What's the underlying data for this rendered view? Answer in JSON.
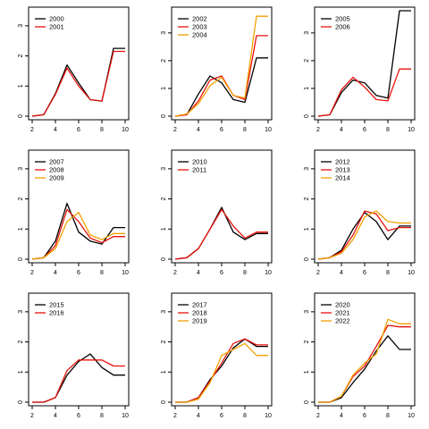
{
  "colors": {
    "black": "#000000",
    "red": "#e8120c",
    "orange": "#f2a100"
  },
  "chart_data": [
    {
      "type": "line",
      "x": [
        2,
        3,
        4,
        5,
        6,
        7,
        8,
        9,
        10
      ],
      "xlim": [
        2,
        10
      ],
      "ylim": [
        0,
        3.5
      ],
      "xticks": [
        "2",
        "4",
        "6",
        "8",
        "10"
      ],
      "yticks": [
        "0",
        "1",
        "2",
        "3"
      ],
      "legend": "top-left",
      "series": [
        {
          "name": "2000",
          "color": "black",
          "values": [
            0,
            0.05,
            0.75,
            1.7,
            1.1,
            0.55,
            0.5,
            2.25,
            2.25
          ]
        },
        {
          "name": "2001",
          "color": "red",
          "values": [
            0,
            0.05,
            0.72,
            1.6,
            1.0,
            0.55,
            0.5,
            2.15,
            2.15
          ]
        }
      ]
    },
    {
      "type": "line",
      "x": [
        2,
        3,
        4,
        5,
        6,
        7,
        8,
        9,
        10
      ],
      "xlim": [
        2,
        10
      ],
      "ylim": [
        0,
        3.8
      ],
      "xticks": [
        "2",
        "4",
        "6",
        "8",
        "10"
      ],
      "yticks": [
        "0",
        "1",
        "2",
        "3"
      ],
      "legend": "top-left",
      "series": [
        {
          "name": "2002",
          "color": "black",
          "values": [
            0,
            0.05,
            0.8,
            1.45,
            1.2,
            0.6,
            0.5,
            2.1,
            2.1
          ]
        },
        {
          "name": "2003",
          "color": "red",
          "values": [
            0,
            0.05,
            0.55,
            1.3,
            1.45,
            0.75,
            0.6,
            2.9,
            2.9
          ]
        },
        {
          "name": "2004",
          "color": "orange",
          "values": [
            0,
            0.08,
            0.45,
            1.1,
            1.4,
            0.75,
            0.65,
            3.6,
            3.6
          ]
        }
      ]
    },
    {
      "type": "line",
      "x": [
        2,
        3,
        4,
        5,
        6,
        7,
        8,
        9,
        10
      ],
      "xlim": [
        2,
        10
      ],
      "ylim": [
        0,
        3.8
      ],
      "xticks": [
        "2",
        "4",
        "6",
        "8",
        "10"
      ],
      "yticks": [
        "0",
        "1",
        "2",
        "3"
      ],
      "legend": "top-left",
      "series": [
        {
          "name": "2005",
          "color": "black",
          "values": [
            0,
            0.05,
            0.85,
            1.3,
            1.2,
            0.75,
            0.65,
            3.8,
            3.8
          ]
        },
        {
          "name": "2006",
          "color": "red",
          "values": [
            0,
            0.05,
            0.95,
            1.4,
            1.05,
            0.6,
            0.55,
            1.7,
            1.7
          ]
        }
      ]
    },
    {
      "type": "line",
      "x": [
        2,
        3,
        4,
        5,
        6,
        7,
        8,
        9,
        10
      ],
      "xlim": [
        2,
        10
      ],
      "ylim": [
        0,
        3.5
      ],
      "xticks": [
        "2",
        "4",
        "6",
        "8",
        "10"
      ],
      "yticks": [
        "0",
        "1",
        "2",
        "3"
      ],
      "legend": "top-left",
      "series": [
        {
          "name": "2007",
          "color": "black",
          "values": [
            0,
            0.05,
            0.6,
            1.85,
            0.9,
            0.6,
            0.5,
            1.05,
            1.05
          ]
        },
        {
          "name": "2008",
          "color": "red",
          "values": [
            0,
            0.05,
            0.45,
            1.65,
            1.25,
            0.7,
            0.55,
            0.75,
            0.75
          ]
        },
        {
          "name": "2009",
          "color": "orange",
          "values": [
            0,
            0.05,
            0.35,
            1.25,
            1.55,
            0.8,
            0.65,
            0.85,
            0.85
          ]
        }
      ]
    },
    {
      "type": "line",
      "x": [
        2,
        3,
        4,
        5,
        6,
        7,
        8,
        9,
        10
      ],
      "xlim": [
        2,
        10
      ],
      "ylim": [
        0,
        3.5
      ],
      "xticks": [
        "2",
        "4",
        "6",
        "8",
        "10"
      ],
      "yticks": [
        "0",
        "1",
        "2",
        "3"
      ],
      "legend": "top-left",
      "series": [
        {
          "name": "2010",
          "color": "black",
          "values": [
            0,
            0.05,
            0.35,
            1.0,
            1.72,
            0.9,
            0.65,
            0.85,
            0.85
          ]
        },
        {
          "name": "2011",
          "color": "red",
          "values": [
            0,
            0.05,
            0.35,
            1.0,
            1.65,
            1.1,
            0.7,
            0.9,
            0.9
          ]
        }
      ]
    },
    {
      "type": "line",
      "x": [
        2,
        3,
        4,
        5,
        6,
        7,
        8,
        9,
        10
      ],
      "xlim": [
        2,
        10
      ],
      "ylim": [
        0,
        3.5
      ],
      "xticks": [
        "2",
        "4",
        "6",
        "8",
        "10"
      ],
      "yticks": [
        "0",
        "1",
        "2",
        "3"
      ],
      "legend": "top-left",
      "series": [
        {
          "name": "2012",
          "color": "black",
          "values": [
            0,
            0.05,
            0.3,
            1.0,
            1.55,
            1.25,
            0.65,
            1.1,
            1.1
          ]
        },
        {
          "name": "2013",
          "color": "red",
          "values": [
            0,
            0.05,
            0.25,
            0.8,
            1.6,
            1.5,
            0.95,
            1.05,
            1.05
          ]
        },
        {
          "name": "2014",
          "color": "orange",
          "values": [
            0,
            0.05,
            0.2,
            0.65,
            1.4,
            1.6,
            1.25,
            1.2,
            1.2
          ]
        }
      ]
    },
    {
      "type": "line",
      "x": [
        2,
        3,
        4,
        5,
        6,
        7,
        8,
        9,
        10
      ],
      "xlim": [
        2,
        10
      ],
      "ylim": [
        0,
        3.5
      ],
      "xticks": [
        "2",
        "4",
        "6",
        "8",
        "10"
      ],
      "yticks": [
        "0",
        "1",
        "2",
        "3"
      ],
      "legend": "top-left",
      "series": [
        {
          "name": "2015",
          "color": "black",
          "values": [
            0,
            0,
            0.15,
            0.9,
            1.35,
            1.6,
            1.15,
            0.9,
            0.9
          ]
        },
        {
          "name": "2016",
          "color": "red",
          "values": [
            0,
            0,
            0.15,
            1.05,
            1.4,
            1.4,
            1.4,
            1.2,
            1.2
          ]
        }
      ]
    },
    {
      "type": "line",
      "x": [
        2,
        3,
        4,
        5,
        6,
        7,
        8,
        9,
        10
      ],
      "xlim": [
        2,
        10
      ],
      "ylim": [
        0,
        3.5
      ],
      "xticks": [
        "2",
        "4",
        "6",
        "8",
        "10"
      ],
      "yticks": [
        "0",
        "1",
        "2",
        "3"
      ],
      "legend": "top-left",
      "series": [
        {
          "name": "2017",
          "color": "black",
          "values": [
            0,
            0,
            0.15,
            0.75,
            1.2,
            1.8,
            2.1,
            1.85,
            1.85
          ]
        },
        {
          "name": "2018",
          "color": "red",
          "values": [
            0,
            0,
            0.15,
            0.7,
            1.3,
            1.95,
            2.1,
            1.9,
            1.9
          ]
        },
        {
          "name": "2019",
          "color": "orange",
          "values": [
            0,
            0,
            0.1,
            0.65,
            1.55,
            1.75,
            1.95,
            1.55,
            1.55
          ]
        }
      ]
    },
    {
      "type": "line",
      "x": [
        2,
        3,
        4,
        5,
        6,
        7,
        8,
        9,
        10
      ],
      "xlim": [
        2,
        10
      ],
      "ylim": [
        0,
        3.5
      ],
      "xticks": [
        "2",
        "4",
        "6",
        "8",
        "10"
      ],
      "yticks": [
        "0",
        "1",
        "2",
        "3"
      ],
      "legend": "top-left",
      "series": [
        {
          "name": "2020",
          "color": "black",
          "values": [
            0,
            0,
            0.15,
            0.65,
            1.1,
            1.7,
            2.2,
            1.75,
            1.75
          ]
        },
        {
          "name": "2021",
          "color": "red",
          "values": [
            0,
            0,
            0.2,
            0.85,
            1.2,
            1.85,
            2.55,
            2.5,
            2.5
          ]
        },
        {
          "name": "2022",
          "color": "orange",
          "values": [
            0,
            0,
            0.2,
            0.9,
            1.3,
            1.6,
            2.75,
            2.6,
            2.6
          ]
        }
      ]
    }
  ]
}
